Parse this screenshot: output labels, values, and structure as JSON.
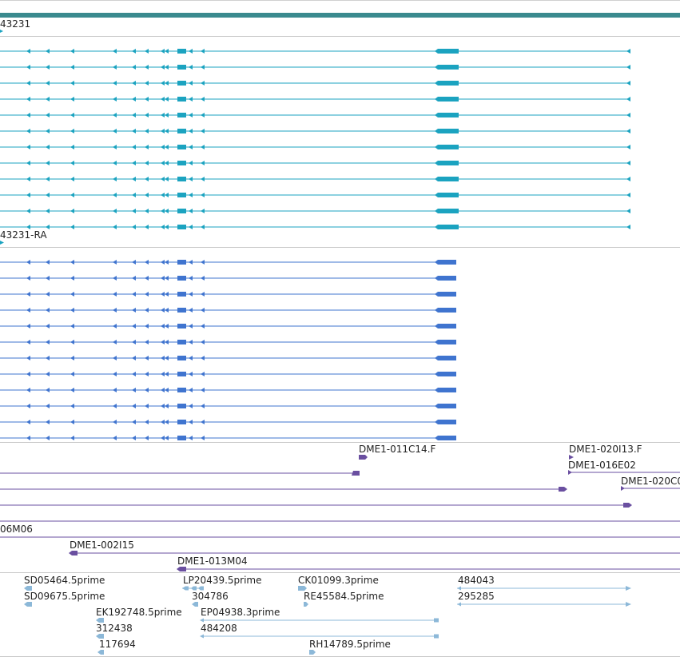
{
  "colors": {
    "gene": "#3a8a8e",
    "mrna": "#1ba3c0",
    "cds": "#3f74cf",
    "clone": "#6a4fa0",
    "est": "#8cb8d8",
    "divider": "#c8c8c8"
  },
  "tracks": {
    "gene": {
      "label": "43231"
    },
    "mrna": {
      "label": "43231-RA",
      "row_count": 12
    },
    "cds": {
      "row_count": 12
    },
    "clones": {
      "features": [
        {
          "label": "DME1-011C14.F"
        },
        {
          "label": "DME1-020I13.F"
        },
        {
          "label": "DME1-016E02"
        },
        {
          "label": "DME1-020C0"
        },
        {
          "label": "06M06"
        },
        {
          "label": "DME1-002I15"
        },
        {
          "label": "DME1-013M04"
        }
      ]
    },
    "ests": {
      "features": [
        {
          "label": "SD05464.5prime"
        },
        {
          "label": "SD09675.5prime"
        },
        {
          "label": "LP20439.5prime"
        },
        {
          "label": "304786"
        },
        {
          "label": "CK01099.3prime"
        },
        {
          "label": "RE45584.5prime"
        },
        {
          "label": "484043"
        },
        {
          "label": "295285"
        },
        {
          "label": "EK192748.5prime"
        },
        {
          "label": "312438"
        },
        {
          "label": "EP04938.3prime"
        },
        {
          "label": "484208"
        },
        {
          "label": "117694"
        },
        {
          "label": "RH14789.5prime"
        }
      ]
    }
  }
}
